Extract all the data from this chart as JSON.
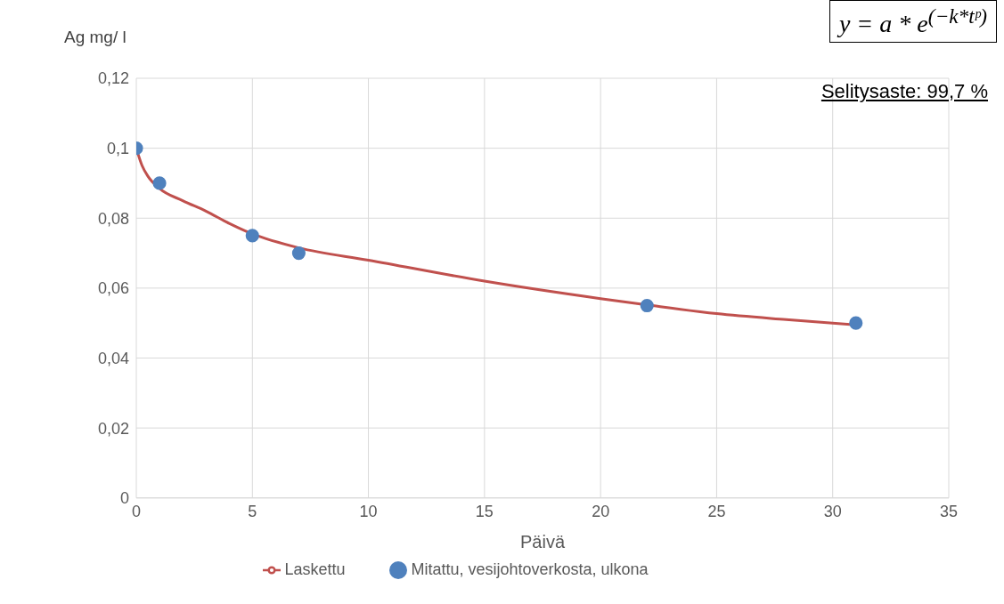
{
  "chart_data": {
    "type": "line",
    "xlabel": "Päivä",
    "ylabel": "Ag mg/ l",
    "annotations": [
      "y = a * e$^{(−k*tᵖ)}$",
      "Selitysaste: 99,7 %"
    ],
    "xlim": [
      0,
      35
    ],
    "xticks": [
      0,
      5,
      10,
      15,
      20,
      25,
      30,
      35
    ],
    "ylim": [
      0,
      0.12
    ],
    "yticks": [
      0,
      {
        "value": 0.02,
        "label": "0,02"
      },
      {
        "value": 0.04,
        "label": "0,04"
      },
      {
        "value": 0.06,
        "label": "0,06"
      },
      {
        "value": 0.08,
        "label": "0,08"
      },
      {
        "value": 0.1,
        "label": "0,1"
      },
      {
        "value": 0.12,
        "label": "0,12"
      }
    ],
    "grid": true,
    "legend": "bottom",
    "series": [
      {
        "name": "Laskettu",
        "type": "line",
        "color": "#c0504d",
        "marker": "none",
        "line_style": "solid",
        "x": [
          0,
          0.25,
          0.5,
          1,
          2,
          3,
          4,
          5,
          7,
          10,
          15,
          20,
          22,
          25,
          28,
          31
        ],
        "values": [
          0.1,
          0.095,
          0.092,
          0.0885,
          0.085,
          0.082,
          0.0785,
          0.0755,
          0.0715,
          0.068,
          0.062,
          0.057,
          0.0552,
          0.0527,
          0.051,
          0.0495
        ]
      },
      {
        "name": "Mitattu, vesijohtoverkosta, ulkona",
        "type": "scatter",
        "color": "#4f81bd",
        "marker": "circle",
        "x": [
          0,
          1,
          5,
          7,
          22,
          31
        ],
        "values": [
          0.1,
          0.09,
          0.075,
          0.07,
          0.055,
          0.05
        ]
      }
    ]
  }
}
